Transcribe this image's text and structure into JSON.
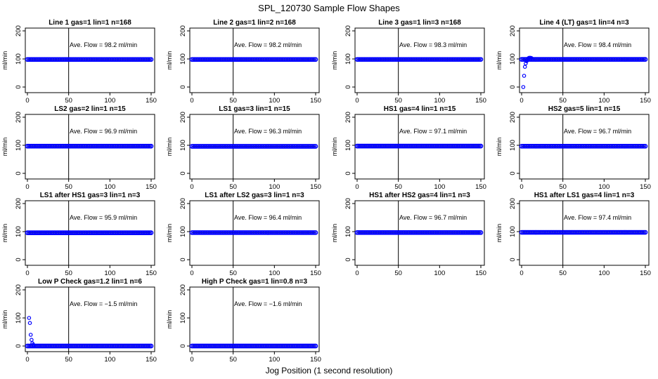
{
  "figure": {
    "title": "SPL_120730  Sample Flow Shapes",
    "xlabel": "Jog Position (1 second resolution)"
  },
  "chart_data": [
    {
      "type": "scatter",
      "title": "Line 1 gas=1 lin=1 n=168",
      "ylabel": "ml/min",
      "annotation": "Ave. Flow = 98.2  ml/min",
      "xlim": [
        0,
        150
      ],
      "ylim": [
        -20,
        210
      ],
      "x_ticks": [
        "0",
        "50",
        "100",
        "150"
      ],
      "y_ticks": [
        "0",
        "100",
        "200"
      ],
      "vline_x": 50,
      "series": [
        {
          "x": [
            0,
            150
          ],
          "y": [
            98.2,
            98.2
          ],
          "level": 98.2
        }
      ]
    },
    {
      "type": "scatter",
      "title": "Line 2 gas=1 lin=2 n=168",
      "ylabel": "ml/min",
      "annotation": "Ave. Flow = 98.2  ml/min",
      "xlim": [
        0,
        150
      ],
      "ylim": [
        -20,
        210
      ],
      "x_ticks": [
        "0",
        "50",
        "100",
        "150"
      ],
      "y_ticks": [
        "0",
        "100",
        "200"
      ],
      "vline_x": 50,
      "series": [
        {
          "x": [
            0,
            150
          ],
          "y": [
            98.2,
            98.2
          ],
          "level": 98.2
        }
      ]
    },
    {
      "type": "scatter",
      "title": "Line 3 gas=1 lin=3 n=168",
      "ylabel": "ml/min",
      "annotation": "Ave. Flow = 98.3  ml/min",
      "xlim": [
        0,
        150
      ],
      "ylim": [
        -20,
        210
      ],
      "x_ticks": [
        "0",
        "50",
        "100",
        "150"
      ],
      "y_ticks": [
        "0",
        "100",
        "200"
      ],
      "vline_x": 50,
      "series": [
        {
          "x": [
            0,
            150
          ],
          "y": [
            98.3,
            98.3
          ],
          "level": 98.3
        }
      ]
    },
    {
      "type": "scatter",
      "title": "Line 4 (LT) gas=1 lin=4 n=3",
      "ylabel": "ml/min",
      "annotation": "Ave. Flow = 98.4  ml/min",
      "xlim": [
        0,
        150
      ],
      "ylim": [
        -20,
        210
      ],
      "x_ticks": [
        "0",
        "50",
        "100",
        "150"
      ],
      "y_ticks": [
        "0",
        "100",
        "200"
      ],
      "vline_x": 50,
      "series": [
        {
          "x": [
            0,
            150
          ],
          "y": [
            98.4,
            98.4
          ],
          "level": 98.4,
          "points": [
            [
              2,
              0
            ],
            [
              3,
              40
            ],
            [
              4,
              72
            ],
            [
              5,
              84
            ],
            [
              6,
              92
            ],
            [
              7,
              96
            ],
            [
              8,
              102
            ],
            [
              9,
              104
            ],
            [
              10,
              104
            ],
            [
              11,
              104
            ],
            [
              12,
              103
            ]
          ]
        }
      ]
    },
    {
      "type": "scatter",
      "title": "LS2 gas=2 lin=1 n=15",
      "ylabel": "ml/min",
      "annotation": "Ave. Flow = 96.9  ml/min",
      "xlim": [
        0,
        150
      ],
      "ylim": [
        -20,
        210
      ],
      "x_ticks": [
        "0",
        "50",
        "100",
        "150"
      ],
      "y_ticks": [
        "0",
        "100",
        "200"
      ],
      "vline_x": 50,
      "series": [
        {
          "x": [
            0,
            150
          ],
          "y": [
            96.9,
            96.9
          ],
          "level": 96.9
        }
      ]
    },
    {
      "type": "scatter",
      "title": "LS1 gas=3 lin=1 n=15",
      "ylabel": "ml/min",
      "annotation": "Ave. Flow = 96.3  ml/min",
      "xlim": [
        0,
        150
      ],
      "ylim": [
        -20,
        210
      ],
      "x_ticks": [
        "0",
        "50",
        "100",
        "150"
      ],
      "y_ticks": [
        "0",
        "100",
        "200"
      ],
      "vline_x": 50,
      "series": [
        {
          "x": [
            0,
            150
          ],
          "y": [
            96.3,
            96.3
          ],
          "level": 96.3
        }
      ]
    },
    {
      "type": "scatter",
      "title": "HS1 gas=4 lin=1 n=15",
      "ylabel": "ml/min",
      "annotation": "Ave. Flow = 97.1  ml/min",
      "xlim": [
        0,
        150
      ],
      "ylim": [
        -20,
        210
      ],
      "x_ticks": [
        "0",
        "50",
        "100",
        "150"
      ],
      "y_ticks": [
        "0",
        "100",
        "200"
      ],
      "vline_x": 50,
      "series": [
        {
          "x": [
            0,
            150
          ],
          "y": [
            97.1,
            97.1
          ],
          "level": 97.1
        }
      ]
    },
    {
      "type": "scatter",
      "title": "HS2 gas=5 lin=1 n=15",
      "ylabel": "ml/min",
      "annotation": "Ave. Flow = 96.7  ml/min",
      "xlim": [
        0,
        150
      ],
      "ylim": [
        -20,
        210
      ],
      "x_ticks": [
        "0",
        "50",
        "100",
        "150"
      ],
      "y_ticks": [
        "0",
        "100",
        "200"
      ],
      "vline_x": 50,
      "series": [
        {
          "x": [
            0,
            150
          ],
          "y": [
            96.7,
            96.7
          ],
          "level": 96.7
        }
      ]
    },
    {
      "type": "scatter",
      "title": "LS1 after HS1 gas=3 lin=1 n=3",
      "ylabel": "ml/min",
      "annotation": "Ave. Flow = 95.9  ml/min",
      "xlim": [
        0,
        150
      ],
      "ylim": [
        -20,
        210
      ],
      "x_ticks": [
        "0",
        "50",
        "100",
        "150"
      ],
      "y_ticks": [
        "0",
        "100",
        "200"
      ],
      "vline_x": 50,
      "series": [
        {
          "x": [
            0,
            150
          ],
          "y": [
            95.9,
            95.9
          ],
          "level": 95.9
        }
      ]
    },
    {
      "type": "scatter",
      "title": "LS1 after LS2 gas=3 lin=1 n=3",
      "ylabel": "ml/min",
      "annotation": "Ave. Flow = 96.4  ml/min",
      "xlim": [
        0,
        150
      ],
      "ylim": [
        -20,
        210
      ],
      "x_ticks": [
        "0",
        "50",
        "100",
        "150"
      ],
      "y_ticks": [
        "0",
        "100",
        "200"
      ],
      "vline_x": 50,
      "series": [
        {
          "x": [
            0,
            150
          ],
          "y": [
            96.4,
            96.4
          ],
          "level": 96.4
        }
      ]
    },
    {
      "type": "scatter",
      "title": "HS1 after HS2 gas=4 lin=1 n=3",
      "ylabel": "ml/min",
      "annotation": "Ave. Flow = 96.7  ml/min",
      "xlim": [
        0,
        150
      ],
      "ylim": [
        -20,
        210
      ],
      "x_ticks": [
        "0",
        "50",
        "100",
        "150"
      ],
      "y_ticks": [
        "0",
        "100",
        "200"
      ],
      "vline_x": 50,
      "series": [
        {
          "x": [
            0,
            150
          ],
          "y": [
            96.7,
            96.7
          ],
          "level": 96.7
        }
      ]
    },
    {
      "type": "scatter",
      "title": "HS1 after LS1 gas=4 lin=1 n=3",
      "ylabel": "ml/min",
      "annotation": "Ave. Flow = 97.4  ml/min",
      "xlim": [
        0,
        150
      ],
      "ylim": [
        -20,
        210
      ],
      "x_ticks": [
        "0",
        "50",
        "100",
        "150"
      ],
      "y_ticks": [
        "0",
        "100",
        "200"
      ],
      "vline_x": 50,
      "series": [
        {
          "x": [
            0,
            150
          ],
          "y": [
            97.4,
            97.4
          ],
          "level": 97.4
        }
      ]
    },
    {
      "type": "scatter",
      "title": "Low P Check gas=1.2 lin=1 n=6",
      "ylabel": "ml/min",
      "annotation": "Ave. Flow = −1.5  ml/min",
      "xlim": [
        0,
        150
      ],
      "ylim": [
        -20,
        210
      ],
      "x_ticks": [
        "0",
        "50",
        "100",
        "150"
      ],
      "y_ticks": [
        "0",
        "100",
        "200"
      ],
      "vline_x": 50,
      "series": [
        {
          "x": [
            0,
            150
          ],
          "y": [
            0,
            0
          ],
          "level": 0,
          "points": [
            [
              2,
              100
            ],
            [
              3,
              82
            ],
            [
              4,
              40
            ],
            [
              5,
              22
            ],
            [
              6,
              10
            ],
            [
              7,
              5
            ],
            [
              8,
              2
            ]
          ]
        }
      ]
    },
    {
      "type": "scatter",
      "title": "High P Check gas=1 lin=0.8 n=3",
      "ylabel": "ml/min",
      "annotation": "Ave. Flow = −1.6  ml/min",
      "xlim": [
        0,
        150
      ],
      "ylim": [
        -20,
        210
      ],
      "x_ticks": [
        "0",
        "50",
        "100",
        "150"
      ],
      "y_ticks": [
        "0",
        "100",
        "200"
      ],
      "vline_x": 50,
      "series": [
        {
          "x": [
            0,
            150
          ],
          "y": [
            0,
            0
          ],
          "level": 0
        }
      ]
    }
  ],
  "style": {
    "point_color": "#0000ff",
    "axis_color": "#000000",
    "background": "#ffffff"
  }
}
